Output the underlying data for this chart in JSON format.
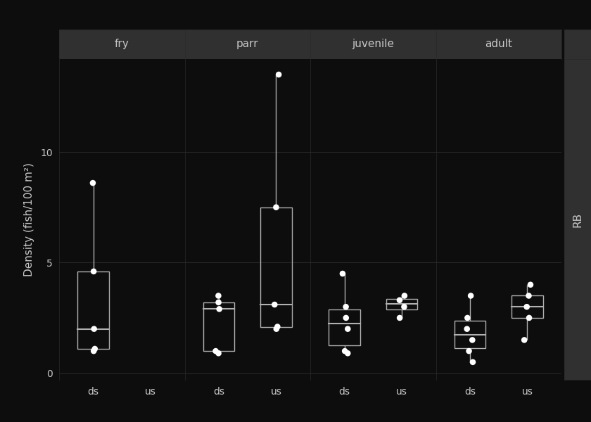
{
  "facets": [
    "fry",
    "parr",
    "juvenile",
    "adult"
  ],
  "groups": [
    "ds",
    "us"
  ],
  "background_color": "#0d0d0d",
  "panel_bg": "#0d0d0d",
  "header_bg": "#303030",
  "text_color": "#c8c8c8",
  "box_color": "#b0b0b0",
  "grid_color": "#2a2a2a",
  "ylabel": "Density (fish/100 m²)",
  "rb_label": "RB",
  "ylim": [
    -0.3,
    14.2
  ],
  "yticks": [
    0,
    5,
    10
  ],
  "ytick_labels": [
    "0",
    "5",
    "10"
  ],
  "data": {
    "fry": {
      "ds": [
        1.0,
        1.1,
        2.0,
        4.6,
        8.6
      ],
      "us": []
    },
    "parr": {
      "ds": [
        0.9,
        1.0,
        2.9,
        3.2,
        3.5
      ],
      "us": [
        2.0,
        2.1,
        3.1,
        7.5,
        13.5
      ]
    },
    "juvenile": {
      "ds": [
        0.9,
        1.0,
        2.0,
        2.5,
        3.0,
        4.5
      ],
      "us": [
        2.5,
        3.0,
        3.3,
        3.5
      ]
    },
    "adult": {
      "ds": [
        0.5,
        1.0,
        1.5,
        2.0,
        2.5,
        3.5
      ],
      "us": [
        1.5,
        2.5,
        3.0,
        3.5,
        4.0
      ]
    }
  },
  "jitter_seeds": {
    "fry_ds": 0,
    "fry_us": 1,
    "parr_ds": 2,
    "parr_us": 3,
    "juvenile_ds": 4,
    "juvenile_us": 5,
    "adult_ds": 6,
    "adult_us": 7
  }
}
